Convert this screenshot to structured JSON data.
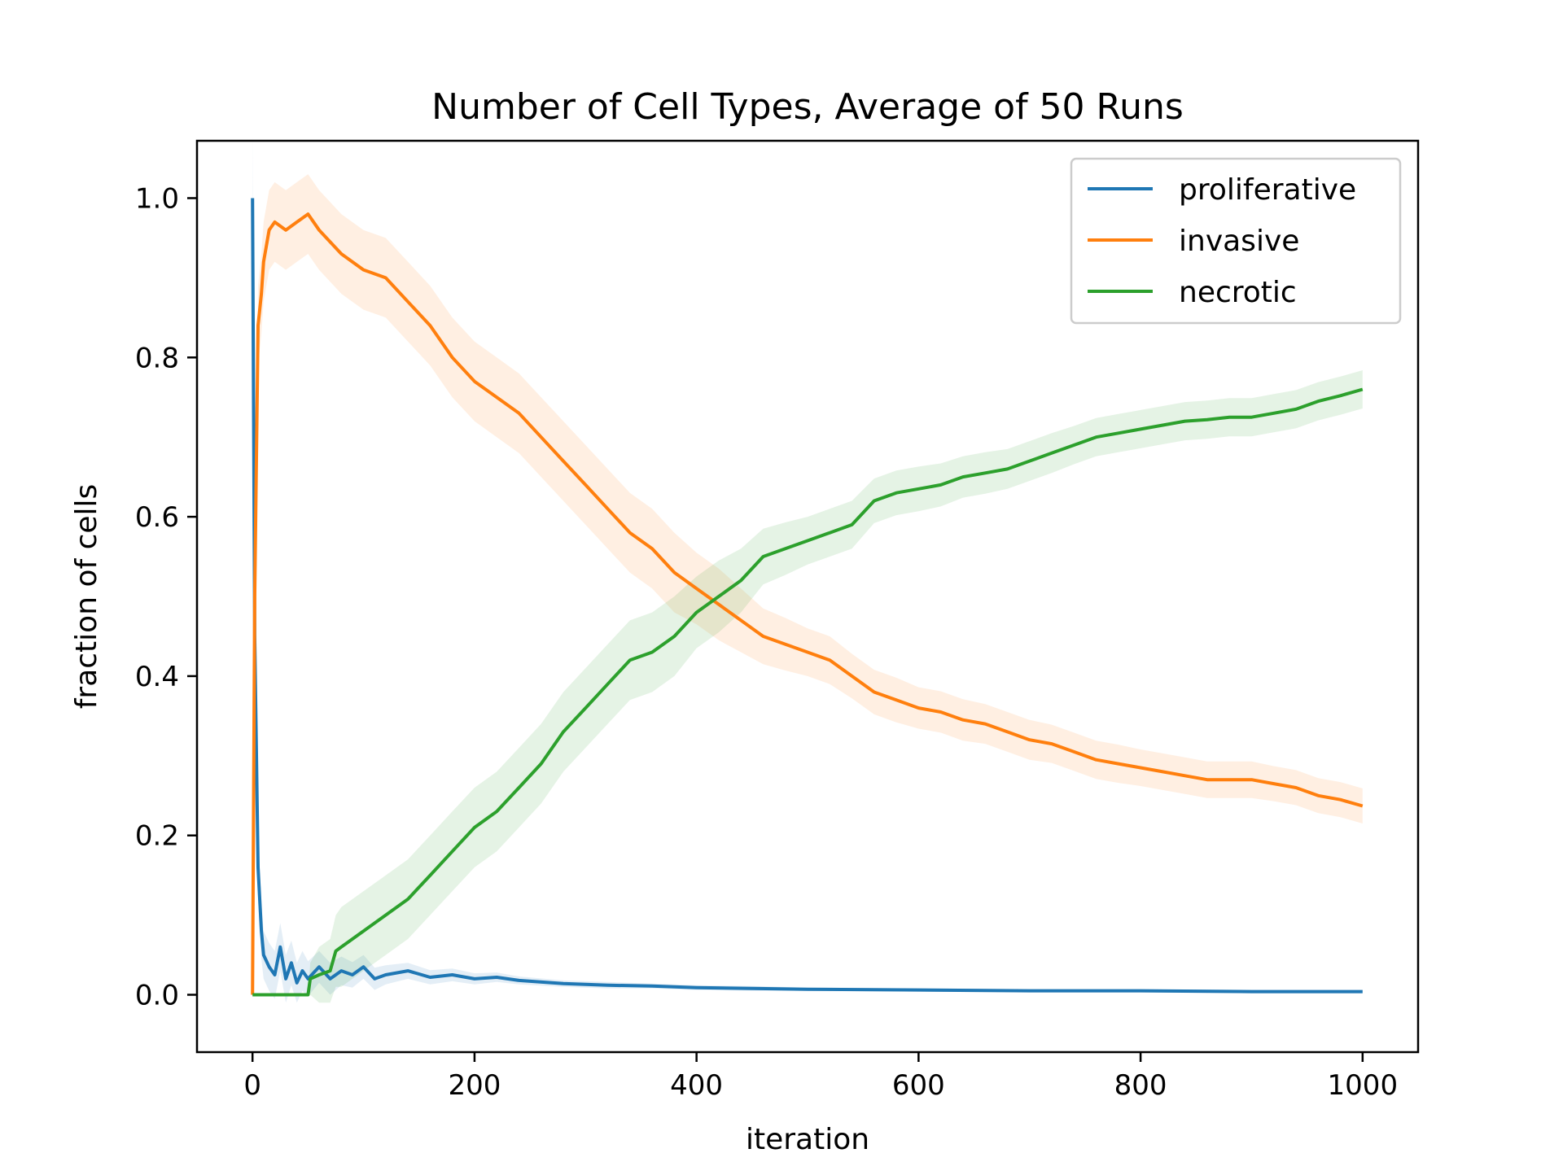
{
  "chart_data": {
    "type": "line",
    "title": "Number of Cell Types, Average of 50 Runs",
    "xlabel": "iteration",
    "ylabel": "fraction of cells",
    "xlim": [
      -50,
      1050
    ],
    "ylim": [
      -0.072,
      1.072
    ],
    "xticks": [
      0,
      200,
      400,
      600,
      800,
      1000
    ],
    "xtick_labels": [
      "0",
      "200",
      "400",
      "600",
      "800",
      "1000"
    ],
    "yticks": [
      0.0,
      0.2,
      0.4,
      0.6,
      0.8,
      1.0
    ],
    "ytick_labels": [
      "0.0",
      "0.2",
      "0.4",
      "0.6",
      "0.8",
      "1.0"
    ],
    "grid": false,
    "legend_position": "top-right",
    "series": [
      {
        "name": "proliferative",
        "color": "#1f77b4",
        "x": [
          0,
          2,
          5,
          8,
          10,
          15,
          20,
          25,
          30,
          35,
          40,
          45,
          50,
          60,
          70,
          80,
          90,
          100,
          110,
          120,
          140,
          160,
          180,
          200,
          220,
          240,
          280,
          320,
          360,
          400,
          450,
          500,
          600,
          700,
          800,
          900,
          1000
        ],
        "y": [
          1.0,
          0.45,
          0.16,
          0.08,
          0.05,
          0.035,
          0.025,
          0.06,
          0.02,
          0.04,
          0.015,
          0.03,
          0.02,
          0.035,
          0.02,
          0.03,
          0.025,
          0.035,
          0.02,
          0.025,
          0.03,
          0.022,
          0.025,
          0.02,
          0.022,
          0.018,
          0.014,
          0.012,
          0.011,
          0.009,
          0.008,
          0.007,
          0.006,
          0.005,
          0.005,
          0.004,
          0.004
        ],
        "band": [
          0.08,
          0.04,
          0.04,
          0.035,
          0.03,
          0.03,
          0.03,
          0.03,
          0.03,
          0.028,
          0.025,
          0.025,
          0.022,
          0.02,
          0.02,
          0.018,
          0.016,
          0.015,
          0.014,
          0.012,
          0.01,
          0.009,
          0.008,
          0.007,
          0.006,
          0.005,
          0.004,
          0.004,
          0.003,
          0.003,
          0.003,
          0.002,
          0.002,
          0.002,
          0.002,
          0.002,
          0.002
        ]
      },
      {
        "name": "invasive",
        "color": "#ff7f0e",
        "x": [
          0,
          2,
          5,
          8,
          10,
          15,
          20,
          30,
          40,
          50,
          60,
          80,
          100,
          120,
          140,
          160,
          180,
          200,
          220,
          240,
          260,
          280,
          300,
          320,
          340,
          360,
          380,
          400,
          420,
          440,
          460,
          480,
          500,
          520,
          540,
          560,
          580,
          600,
          620,
          640,
          660,
          680,
          700,
          720,
          740,
          760,
          780,
          800,
          820,
          840,
          860,
          880,
          900,
          920,
          940,
          960,
          980,
          1000
        ],
        "y": [
          0.0,
          0.5,
          0.84,
          0.88,
          0.92,
          0.96,
          0.97,
          0.96,
          0.97,
          0.98,
          0.96,
          0.93,
          0.91,
          0.9,
          0.87,
          0.84,
          0.8,
          0.77,
          0.75,
          0.73,
          0.7,
          0.67,
          0.64,
          0.61,
          0.58,
          0.56,
          0.53,
          0.51,
          0.49,
          0.47,
          0.45,
          0.44,
          0.43,
          0.42,
          0.4,
          0.38,
          0.37,
          0.36,
          0.355,
          0.345,
          0.34,
          0.33,
          0.32,
          0.315,
          0.305,
          0.295,
          0.29,
          0.285,
          0.28,
          0.275,
          0.27,
          0.27,
          0.27,
          0.265,
          0.26,
          0.25,
          0.245,
          0.237
        ],
        "band": [
          0.0,
          0.05,
          0.05,
          0.05,
          0.05,
          0.05,
          0.05,
          0.05,
          0.05,
          0.05,
          0.05,
          0.05,
          0.05,
          0.05,
          0.05,
          0.05,
          0.05,
          0.05,
          0.05,
          0.05,
          0.05,
          0.05,
          0.05,
          0.05,
          0.05,
          0.05,
          0.05,
          0.045,
          0.045,
          0.04,
          0.035,
          0.033,
          0.03,
          0.03,
          0.028,
          0.028,
          0.028,
          0.026,
          0.026,
          0.026,
          0.025,
          0.025,
          0.025,
          0.024,
          0.024,
          0.024,
          0.024,
          0.023,
          0.023,
          0.023,
          0.023,
          0.023,
          0.023,
          0.022,
          0.022,
          0.022,
          0.022,
          0.022
        ]
      },
      {
        "name": "necrotic",
        "color": "#2ca02c",
        "x": [
          0,
          50,
          52,
          60,
          70,
          75,
          80,
          90,
          100,
          120,
          140,
          160,
          180,
          200,
          220,
          240,
          260,
          280,
          300,
          320,
          340,
          360,
          380,
          400,
          420,
          440,
          460,
          480,
          500,
          520,
          540,
          560,
          580,
          600,
          620,
          640,
          660,
          680,
          700,
          720,
          740,
          760,
          780,
          800,
          820,
          840,
          860,
          880,
          900,
          920,
          940,
          960,
          980,
          1000
        ],
        "y": [
          0.0,
          0.0,
          0.02,
          0.025,
          0.03,
          0.055,
          0.06,
          0.07,
          0.08,
          0.1,
          0.12,
          0.15,
          0.18,
          0.21,
          0.23,
          0.26,
          0.29,
          0.33,
          0.36,
          0.39,
          0.42,
          0.43,
          0.45,
          0.48,
          0.5,
          0.52,
          0.55,
          0.56,
          0.57,
          0.58,
          0.59,
          0.62,
          0.63,
          0.635,
          0.64,
          0.65,
          0.655,
          0.66,
          0.67,
          0.68,
          0.69,
          0.7,
          0.705,
          0.71,
          0.715,
          0.72,
          0.722,
          0.725,
          0.725,
          0.73,
          0.735,
          0.745,
          0.752,
          0.76
        ],
        "band": [
          0.0,
          0.0,
          0.02,
          0.035,
          0.04,
          0.045,
          0.05,
          0.05,
          0.05,
          0.05,
          0.05,
          0.05,
          0.05,
          0.05,
          0.05,
          0.05,
          0.05,
          0.05,
          0.05,
          0.05,
          0.05,
          0.05,
          0.05,
          0.045,
          0.045,
          0.04,
          0.035,
          0.033,
          0.03,
          0.03,
          0.03,
          0.028,
          0.028,
          0.028,
          0.027,
          0.026,
          0.026,
          0.025,
          0.025,
          0.025,
          0.024,
          0.024,
          0.024,
          0.024,
          0.024,
          0.024,
          0.024,
          0.024,
          0.024,
          0.024,
          0.024,
          0.024,
          0.024,
          0.024
        ]
      }
    ]
  }
}
